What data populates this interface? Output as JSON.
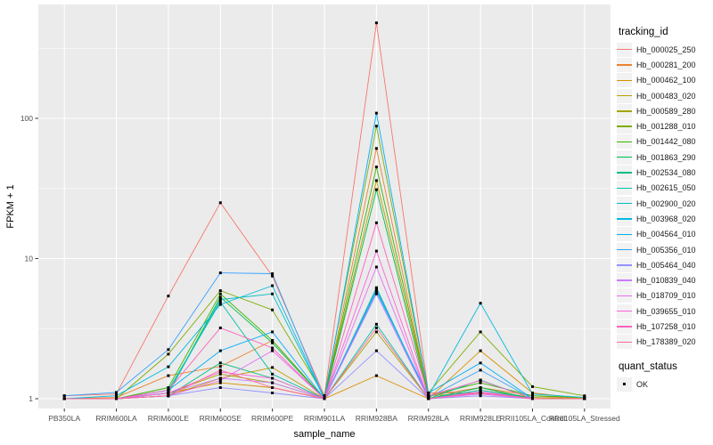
{
  "chart_data": {
    "type": "line",
    "title": "",
    "xlabel": "sample_name",
    "ylabel": "FPKM + 1",
    "y_scale": "log10",
    "y_ticks": [
      1,
      10,
      100
    ],
    "y_tick_labels": [
      "1",
      "10",
      "100"
    ],
    "y_minor_ticks": [
      3.162,
      31.62,
      316.2
    ],
    "ylim": [
      0.93,
      600
    ],
    "grid": "major-and-minor-white-on-grey",
    "legend_position": "right",
    "point_shape": "square",
    "point_color": "#000000",
    "categories": [
      "PB350LA",
      "RRIM600LA",
      "RRIM600LE",
      "RRIM600SE",
      "RRIM600PE",
      "RRIM901LA",
      "RRIM928BA",
      "RRIM928LA",
      "RRIM928LE",
      "RRII105LA_Control",
      "RRII105LA_Stressed"
    ],
    "series": [
      {
        "name": "Hb_000025_250",
        "color": "#F8766D",
        "values": [
          1.05,
          1.08,
          5.4,
          25,
          7.5,
          1.05,
          480,
          1.1,
          1.1,
          1.0,
          1.0
        ]
      },
      {
        "name": "Hb_000281_200",
        "color": "#EA8331",
        "values": [
          1.0,
          1.02,
          1.46,
          1.7,
          2.6,
          1.0,
          61,
          1.05,
          1.2,
          1.05,
          1.0
        ]
      },
      {
        "name": "Hb_000462_100",
        "color": "#D89000",
        "values": [
          1.0,
          1.0,
          1.1,
          1.3,
          1.2,
          1.0,
          1.46,
          1.0,
          2.2,
          1.1,
          1.0
        ]
      },
      {
        "name": "Hb_000483_020",
        "color": "#C09B00",
        "values": [
          1.0,
          1.0,
          1.05,
          1.4,
          1.67,
          1.0,
          36,
          1.05,
          1.1,
          1.0,
          1.0
        ]
      },
      {
        "name": "Hb_000589_280",
        "color": "#A3A500",
        "values": [
          1.0,
          1.0,
          1.1,
          1.5,
          1.3,
          1.0,
          3.0,
          1.0,
          1.15,
          1.02,
          1.0
        ]
      },
      {
        "name": "Hb_001288_010",
        "color": "#7CAE00",
        "values": [
          1.0,
          1.0,
          2.08,
          5.9,
          4.3,
          1.05,
          88,
          1.1,
          3.0,
          1.22,
          1.05
        ]
      },
      {
        "name": "Hb_001442_080",
        "color": "#39B600",
        "values": [
          1.0,
          1.0,
          1.2,
          5.6,
          2.6,
          1.0,
          45,
          1.05,
          1.3,
          1.05,
          1.02
        ]
      },
      {
        "name": "Hb_001863_290",
        "color": "#00BB4E",
        "values": [
          1.0,
          1.0,
          1.1,
          5.3,
          2.5,
          1.0,
          31,
          1.0,
          1.2,
          1.0,
          1.0
        ]
      },
      {
        "name": "Hb_002534_080",
        "color": "#00BF7D",
        "values": [
          1.0,
          1.0,
          1.05,
          1.8,
          1.4,
          1.0,
          6.2,
          1.0,
          1.1,
          1.0,
          1.0
        ]
      },
      {
        "name": "Hb_002615_050",
        "color": "#00C1A3",
        "values": [
          1.0,
          1.0,
          1.15,
          4.9,
          1.5,
          1.0,
          3.4,
          1.0,
          1.36,
          1.0,
          1.0
        ]
      },
      {
        "name": "Hb_002900_020",
        "color": "#00BFC4",
        "values": [
          1.0,
          1.0,
          1.1,
          5.1,
          5.6,
          1.0,
          6.0,
          1.0,
          1.15,
          1.0,
          1.0
        ]
      },
      {
        "name": "Hb_003968_020",
        "color": "#00BAE0",
        "values": [
          1.0,
          1.05,
          1.69,
          4.7,
          6.4,
          1.0,
          5.8,
          1.05,
          4.8,
          1.08,
          1.02
        ]
      },
      {
        "name": "Hb_004564_010",
        "color": "#00B0F6",
        "values": [
          1.0,
          1.0,
          1.15,
          2.2,
          3.0,
          1.0,
          109,
          1.1,
          1.8,
          1.0,
          1.0
        ]
      },
      {
        "name": "Hb_005356_010",
        "color": "#35A2FF",
        "values": [
          1.05,
          1.11,
          2.24,
          7.9,
          7.8,
          1.0,
          6.1,
          1.02,
          1.6,
          1.0,
          1.0
        ]
      },
      {
        "name": "Hb_005464_040",
        "color": "#9590FF",
        "values": [
          1.0,
          1.0,
          1.05,
          1.2,
          1.1,
          1.0,
          2.2,
          1.0,
          1.05,
          1.0,
          1.0
        ]
      },
      {
        "name": "Hb_010839_040",
        "color": "#C77CFF",
        "values": [
          1.0,
          1.0,
          1.1,
          1.4,
          1.3,
          1.0,
          5.6,
          1.0,
          1.1,
          1.0,
          1.0
        ]
      },
      {
        "name": "Hb_018709_010",
        "color": "#E76BF3",
        "values": [
          1.0,
          1.0,
          1.05,
          1.35,
          2.2,
          1.0,
          8.7,
          1.0,
          1.08,
          1.0,
          1.0
        ]
      },
      {
        "name": "Hb_039655_010",
        "color": "#FA62DB",
        "values": [
          1.0,
          1.0,
          1.1,
          1.55,
          1.4,
          1.0,
          11.3,
          1.0,
          1.12,
          1.0,
          1.0
        ]
      },
      {
        "name": "Hb_107258_010",
        "color": "#FF62BC",
        "values": [
          1.0,
          1.0,
          1.15,
          3.2,
          2.3,
          1.0,
          18,
          1.05,
          1.35,
          1.0,
          1.0
        ]
      },
      {
        "name": "Hb_178389_020",
        "color": "#FF6A98",
        "values": [
          1.0,
          1.0,
          1.05,
          1.6,
          1.2,
          1.0,
          3.2,
          1.0,
          1.1,
          1.0,
          1.0
        ]
      }
    ]
  },
  "legend": {
    "tracking_title": "tracking_id",
    "quant_title": "quant_status",
    "quant_items": [
      {
        "label": "OK"
      }
    ]
  },
  "colors": {
    "panel_bg": "#EBEBEB",
    "grid": "#FFFFFF",
    "tick_mark": "#333333",
    "tick_label": "#4D4D4D",
    "axis_title": "#000000",
    "legend_key_bg": "#F2F2F2",
    "point": "#000000"
  }
}
